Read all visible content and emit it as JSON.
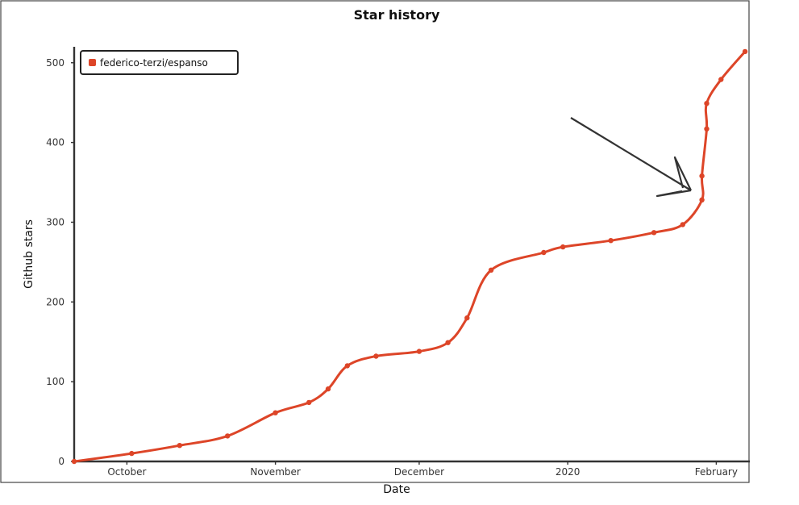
{
  "chart_data": {
    "type": "line",
    "title": "Star history",
    "xlabel": "Date",
    "ylabel": "Github stars",
    "ylim": [
      0,
      520
    ],
    "xlim": [
      "2019-09-20",
      "2020-02-08"
    ],
    "x_ticks": [
      {
        "label": "October",
        "date": "2019-10-01"
      },
      {
        "label": "November",
        "date": "2019-11-01"
      },
      {
        "label": "December",
        "date": "2019-12-01"
      },
      {
        "label": "2020",
        "date": "2020-01-01"
      },
      {
        "label": "February",
        "date": "2020-02-01"
      }
    ],
    "y_ticks": [
      0,
      100,
      200,
      300,
      400,
      500
    ],
    "legend": {
      "position": "top-left",
      "entries": [
        "federico-terzi/espanso"
      ]
    },
    "series": [
      {
        "name": "federico-terzi/espanso",
        "color": "#dd4528",
        "points": [
          {
            "x": "2019-09-20",
            "y": 0
          },
          {
            "x": "2019-10-02",
            "y": 10
          },
          {
            "x": "2019-10-12",
            "y": 20
          },
          {
            "x": "2019-10-22",
            "y": 32
          },
          {
            "x": "2019-11-01",
            "y": 61
          },
          {
            "x": "2019-11-08",
            "y": 74
          },
          {
            "x": "2019-11-12",
            "y": 91
          },
          {
            "x": "2019-11-16",
            "y": 120
          },
          {
            "x": "2019-11-22",
            "y": 132
          },
          {
            "x": "2019-12-01",
            "y": 138
          },
          {
            "x": "2019-12-07",
            "y": 149
          },
          {
            "x": "2019-12-11",
            "y": 180
          },
          {
            "x": "2019-12-16",
            "y": 240
          },
          {
            "x": "2019-12-27",
            "y": 262
          },
          {
            "x": "2019-12-31",
            "y": 269
          },
          {
            "x": "2020-01-10",
            "y": 277
          },
          {
            "x": "2020-01-19",
            "y": 287
          },
          {
            "x": "2020-01-25",
            "y": 297
          },
          {
            "x": "2020-01-29",
            "y": 328
          },
          {
            "x": "2020-01-29",
            "y": 358
          },
          {
            "x": "2020-01-30",
            "y": 417
          },
          {
            "x": "2020-01-30",
            "y": 449
          },
          {
            "x": "2020-02-02",
            "y": 479
          },
          {
            "x": "2020-02-07",
            "y": 514
          }
        ]
      }
    ]
  }
}
